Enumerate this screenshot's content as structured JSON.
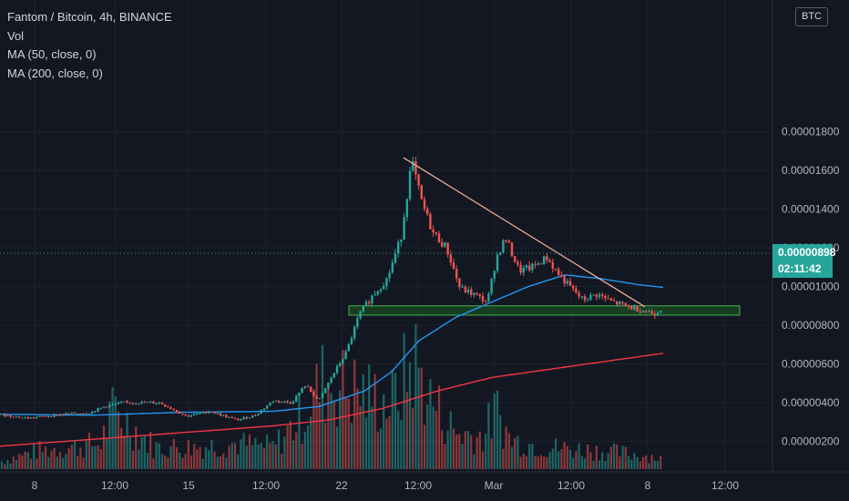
{
  "legend": {
    "title": "Fantom / Bitcoin, 4h, BINANCE",
    "vol": "Vol",
    "ma50": "MA (50, close, 0)",
    "ma200": "MA (200, close, 0)"
  },
  "currency_label": "BTC",
  "last_price": {
    "value": "0.00000898",
    "countdown": "02:11:42"
  },
  "colors": {
    "background": "#131722",
    "up": "#26a69a",
    "down": "#ef5350",
    "ma50": "#2196f3",
    "ma200": "#f23645",
    "trendline": "#f7b29a",
    "zone_fill": "#1b5e20",
    "zone_border": "#4caf50"
  },
  "chart_data": {
    "type": "candlestick",
    "symbol": "FTMBTC",
    "interval": "4h",
    "exchange": "BINANCE",
    "y_ticks": [
      "0.00001800",
      "0.00001600",
      "0.00001400",
      "0.00001200",
      "0.00001000",
      "0.00000800",
      "0.00000600",
      "0.00000400",
      "0.00000200"
    ],
    "y_tick_values": [
      1800,
      1600,
      1400,
      1200,
      1000,
      800,
      600,
      400,
      200
    ],
    "y_unit_note": "values x 1e-8 BTC",
    "ylim": [
      0,
      1850
    ],
    "x_ticks": [
      "8",
      "12:00",
      "15",
      "12:00",
      "22",
      "12:00",
      "Mar",
      "12:00",
      "8",
      "12:00"
    ],
    "last_price": 898,
    "price_series_keypoints": [
      {
        "t": 0,
        "p": 338
      },
      {
        "t": 30,
        "p": 320
      },
      {
        "t": 70,
        "p": 340
      },
      {
        "t": 100,
        "p": 350
      },
      {
        "t": 115,
        "p": 380
      },
      {
        "t": 135,
        "p": 400
      },
      {
        "t": 175,
        "p": 400
      },
      {
        "t": 205,
        "p": 330
      },
      {
        "t": 230,
        "p": 355
      },
      {
        "t": 260,
        "p": 310
      },
      {
        "t": 280,
        "p": 335
      },
      {
        "t": 300,
        "p": 410
      },
      {
        "t": 320,
        "p": 400
      },
      {
        "t": 335,
        "p": 490
      },
      {
        "t": 350,
        "p": 410
      },
      {
        "t": 365,
        "p": 540
      },
      {
        "t": 380,
        "p": 660
      },
      {
        "t": 395,
        "p": 860
      },
      {
        "t": 410,
        "p": 960
      },
      {
        "t": 425,
        "p": 1040
      },
      {
        "t": 440,
        "p": 1250
      },
      {
        "t": 452,
        "p": 1650
      },
      {
        "t": 462,
        "p": 1450
      },
      {
        "t": 475,
        "p": 1280
      },
      {
        "t": 490,
        "p": 1200
      },
      {
        "t": 505,
        "p": 990
      },
      {
        "t": 520,
        "p": 960
      },
      {
        "t": 535,
        "p": 920
      },
      {
        "t": 545,
        "p": 1150
      },
      {
        "t": 555,
        "p": 1250
      },
      {
        "t": 570,
        "p": 1080
      },
      {
        "t": 585,
        "p": 1100
      },
      {
        "t": 600,
        "p": 1150
      },
      {
        "t": 612,
        "p": 1070
      },
      {
        "t": 625,
        "p": 1000
      },
      {
        "t": 640,
        "p": 930
      },
      {
        "t": 655,
        "p": 960
      },
      {
        "t": 672,
        "p": 920
      },
      {
        "t": 690,
        "p": 895
      },
      {
        "t": 705,
        "p": 880
      },
      {
        "t": 718,
        "p": 860
      },
      {
        "t": 728,
        "p": 898
      }
    ],
    "ma50_keypoints": [
      {
        "t": 0,
        "p": 340
      },
      {
        "t": 100,
        "p": 335
      },
      {
        "t": 200,
        "p": 350
      },
      {
        "t": 300,
        "p": 355
      },
      {
        "t": 350,
        "p": 380
      },
      {
        "t": 400,
        "p": 460
      },
      {
        "t": 430,
        "p": 560
      },
      {
        "t": 460,
        "p": 720
      },
      {
        "t": 500,
        "p": 840
      },
      {
        "t": 540,
        "p": 920
      },
      {
        "t": 580,
        "p": 1000
      },
      {
        "t": 620,
        "p": 1060
      },
      {
        "t": 660,
        "p": 1040
      },
      {
        "t": 700,
        "p": 1010
      },
      {
        "t": 728,
        "p": 995
      }
    ],
    "ma200_keypoints": [
      {
        "t": 0,
        "p": 175
      },
      {
        "t": 100,
        "p": 210
      },
      {
        "t": 200,
        "p": 245
      },
      {
        "t": 300,
        "p": 280
      },
      {
        "t": 360,
        "p": 310
      },
      {
        "t": 420,
        "p": 370
      },
      {
        "t": 480,
        "p": 460
      },
      {
        "t": 540,
        "p": 530
      },
      {
        "t": 600,
        "p": 570
      },
      {
        "t": 660,
        "p": 610
      },
      {
        "t": 728,
        "p": 655
      }
    ],
    "trendline": [
      {
        "t": 443,
        "p": 1665
      },
      {
        "t": 708,
        "p": 895
      }
    ],
    "support_zone": {
      "t_start": 383,
      "t_end": 812,
      "p_low": 852,
      "p_high": 900
    },
    "volume_profile_keypoints": [
      {
        "t": 0,
        "v": 10
      },
      {
        "t": 40,
        "v": 25
      },
      {
        "t": 80,
        "v": 30
      },
      {
        "t": 110,
        "v": 35
      },
      {
        "t": 125,
        "v": 80
      },
      {
        "t": 170,
        "v": 30
      },
      {
        "t": 210,
        "v": 30
      },
      {
        "t": 260,
        "v": 35
      },
      {
        "t": 300,
        "v": 30
      },
      {
        "t": 330,
        "v": 70
      },
      {
        "t": 355,
        "v": 120
      },
      {
        "t": 385,
        "v": 110
      },
      {
        "t": 405,
        "v": 100
      },
      {
        "t": 430,
        "v": 90
      },
      {
        "t": 455,
        "v": 150
      },
      {
        "t": 470,
        "v": 100
      },
      {
        "t": 500,
        "v": 50
      },
      {
        "t": 530,
        "v": 45
      },
      {
        "t": 545,
        "v": 80
      },
      {
        "t": 560,
        "v": 40
      },
      {
        "t": 600,
        "v": 30
      },
      {
        "t": 660,
        "v": 25
      },
      {
        "t": 700,
        "v": 20
      },
      {
        "t": 728,
        "v": 15
      }
    ]
  }
}
